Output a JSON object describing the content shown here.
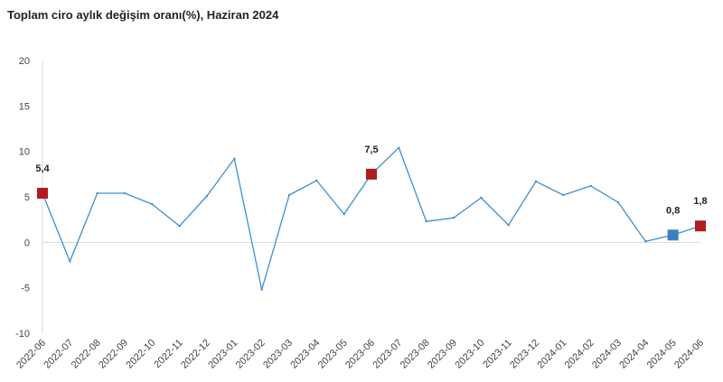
{
  "title": "Toplam ciro aylık değişim oranı(%), Haziran 2024",
  "chart_data": {
    "type": "line",
    "title": "Toplam ciro aylık değişim oranı(%), Haziran 2024",
    "xlabel": "",
    "ylabel": "",
    "ylim": [
      -10,
      20
    ],
    "yticks": [
      "20",
      "15",
      "10",
      "5",
      "0",
      "-5",
      "-10"
    ],
    "grid": false,
    "line_color": "#3f8fcf",
    "categories": [
      "2022-06",
      "2022-07",
      "2022-08",
      "2022-09",
      "2022-10",
      "2022-11",
      "2022-12",
      "2023-01",
      "2023-02",
      "2023-03",
      "2023-04",
      "2023-05",
      "2023-06",
      "2023-07",
      "2023-08",
      "2023-09",
      "2023-10",
      "2023-11",
      "2023-12",
      "2024-01",
      "2024-02",
      "2024-03",
      "2024-04",
      "2024-05",
      "2024-06"
    ],
    "series": [
      {
        "values": [
          5.4,
          -2.1,
          5.4,
          5.4,
          4.2,
          1.8,
          5.1,
          9.2,
          -5.2,
          5.2,
          6.8,
          3.1,
          7.5,
          10.4,
          2.3,
          2.7,
          4.9,
          1.9,
          6.7,
          5.2,
          6.2,
          4.4,
          0.1,
          0.8,
          1.8
        ]
      }
    ],
    "annotations": [
      {
        "category": "2022-06",
        "value": 5.4,
        "label": "5,4",
        "color": "#b01c21"
      },
      {
        "category": "2023-06",
        "value": 7.5,
        "label": "7,5",
        "color": "#b01c21"
      },
      {
        "category": "2024-05",
        "value": 0.8,
        "label": "0,8",
        "color": "#3a80c0"
      },
      {
        "category": "2024-06",
        "value": 1.8,
        "label": "1,8",
        "color": "#b01c21"
      }
    ]
  }
}
